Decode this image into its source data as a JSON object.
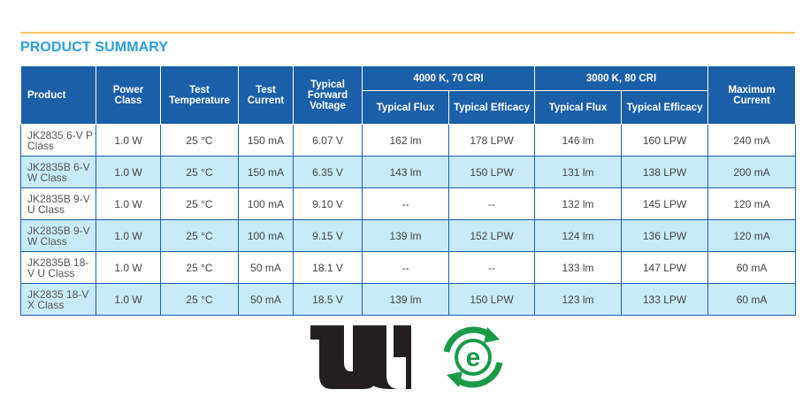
{
  "section": {
    "title": "PRODUCT SUMMARY"
  },
  "table": {
    "headers": {
      "product": "Product",
      "power_class": "Power Class",
      "test_temperature": "Test Temperature",
      "test_current": "Test Current",
      "typical_forward_voltage": "Typical Forward Voltage",
      "group_4000k": "4000 K, 70 CRI",
      "group_3000k": "3000 K, 80 CRI",
      "typical_flux": "Typical Flux",
      "typical_efficacy": "Typical Efficacy",
      "maximum_current": "Maximum Current"
    },
    "rows": [
      {
        "product": "JK2835 6-V P Class",
        "power": "1.0 W",
        "temp": "25 °C",
        "current": "150 mA",
        "voltage": "6.07 V",
        "flux_4000": "162 lm",
        "eff_4000": "178 LPW",
        "flux_3000": "146 lm",
        "eff_3000": "160 LPW",
        "max_current": "240 mA"
      },
      {
        "product": "JK2835B 6-V W Class",
        "power": "1.0 W",
        "temp": "25 °C",
        "current": "150 mA",
        "voltage": "6.35 V",
        "flux_4000": "143 lm",
        "eff_4000": "150 LPW",
        "flux_3000": "131 lm",
        "eff_3000": "138 LPW",
        "max_current": "200 mA"
      },
      {
        "product": "JK2835B 9-V U Class",
        "power": "1.0 W",
        "temp": "25 °C",
        "current": "100 mA",
        "voltage": "9.10 V",
        "flux_4000": "--",
        "eff_4000": "--",
        "flux_3000": "132 lm",
        "eff_3000": "145 LPW",
        "max_current": "120 mA"
      },
      {
        "product": "JK2835B 9-V W Class",
        "power": "1.0 W",
        "temp": "25 °C",
        "current": "100 mA",
        "voltage": "9.15 V",
        "flux_4000": "139 lm",
        "eff_4000": "152 LPW",
        "flux_3000": "124 lm",
        "eff_3000": "136 LPW",
        "max_current": "120 mA"
      },
      {
        "product": "JK2835B 18-V U Class",
        "power": "1.0 W",
        "temp": "25 °C",
        "current": "50 mA",
        "voltage": "18.1 V",
        "flux_4000": "--",
        "eff_4000": "--",
        "flux_3000": "133 lm",
        "eff_3000": "147 LPW",
        "max_current": "60 mA"
      },
      {
        "product": "JK2835 18-V X Class",
        "power": "1.0 W",
        "temp": "25 °C",
        "current": "50 mA",
        "voltage": "18.5 V",
        "flux_4000": "139 lm",
        "eff_4000": "150 LPW",
        "flux_3000": "123 lm",
        "eff_3000": "133 LPW",
        "max_current": "60 mA"
      }
    ]
  },
  "logos": {
    "ul_mark": {
      "icon": "ul-recognized-icon",
      "registered": "®",
      "color": "#231f20"
    },
    "eco_mark": {
      "icon": "eco-e-recycle-icon",
      "letter": "e",
      "color": "#1a9a48"
    }
  },
  "colors": {
    "header_bg": "#1b5fa8",
    "alt_row": "#c8ebf8",
    "title": "#2a9fd8",
    "rule": "#f6c65b"
  }
}
